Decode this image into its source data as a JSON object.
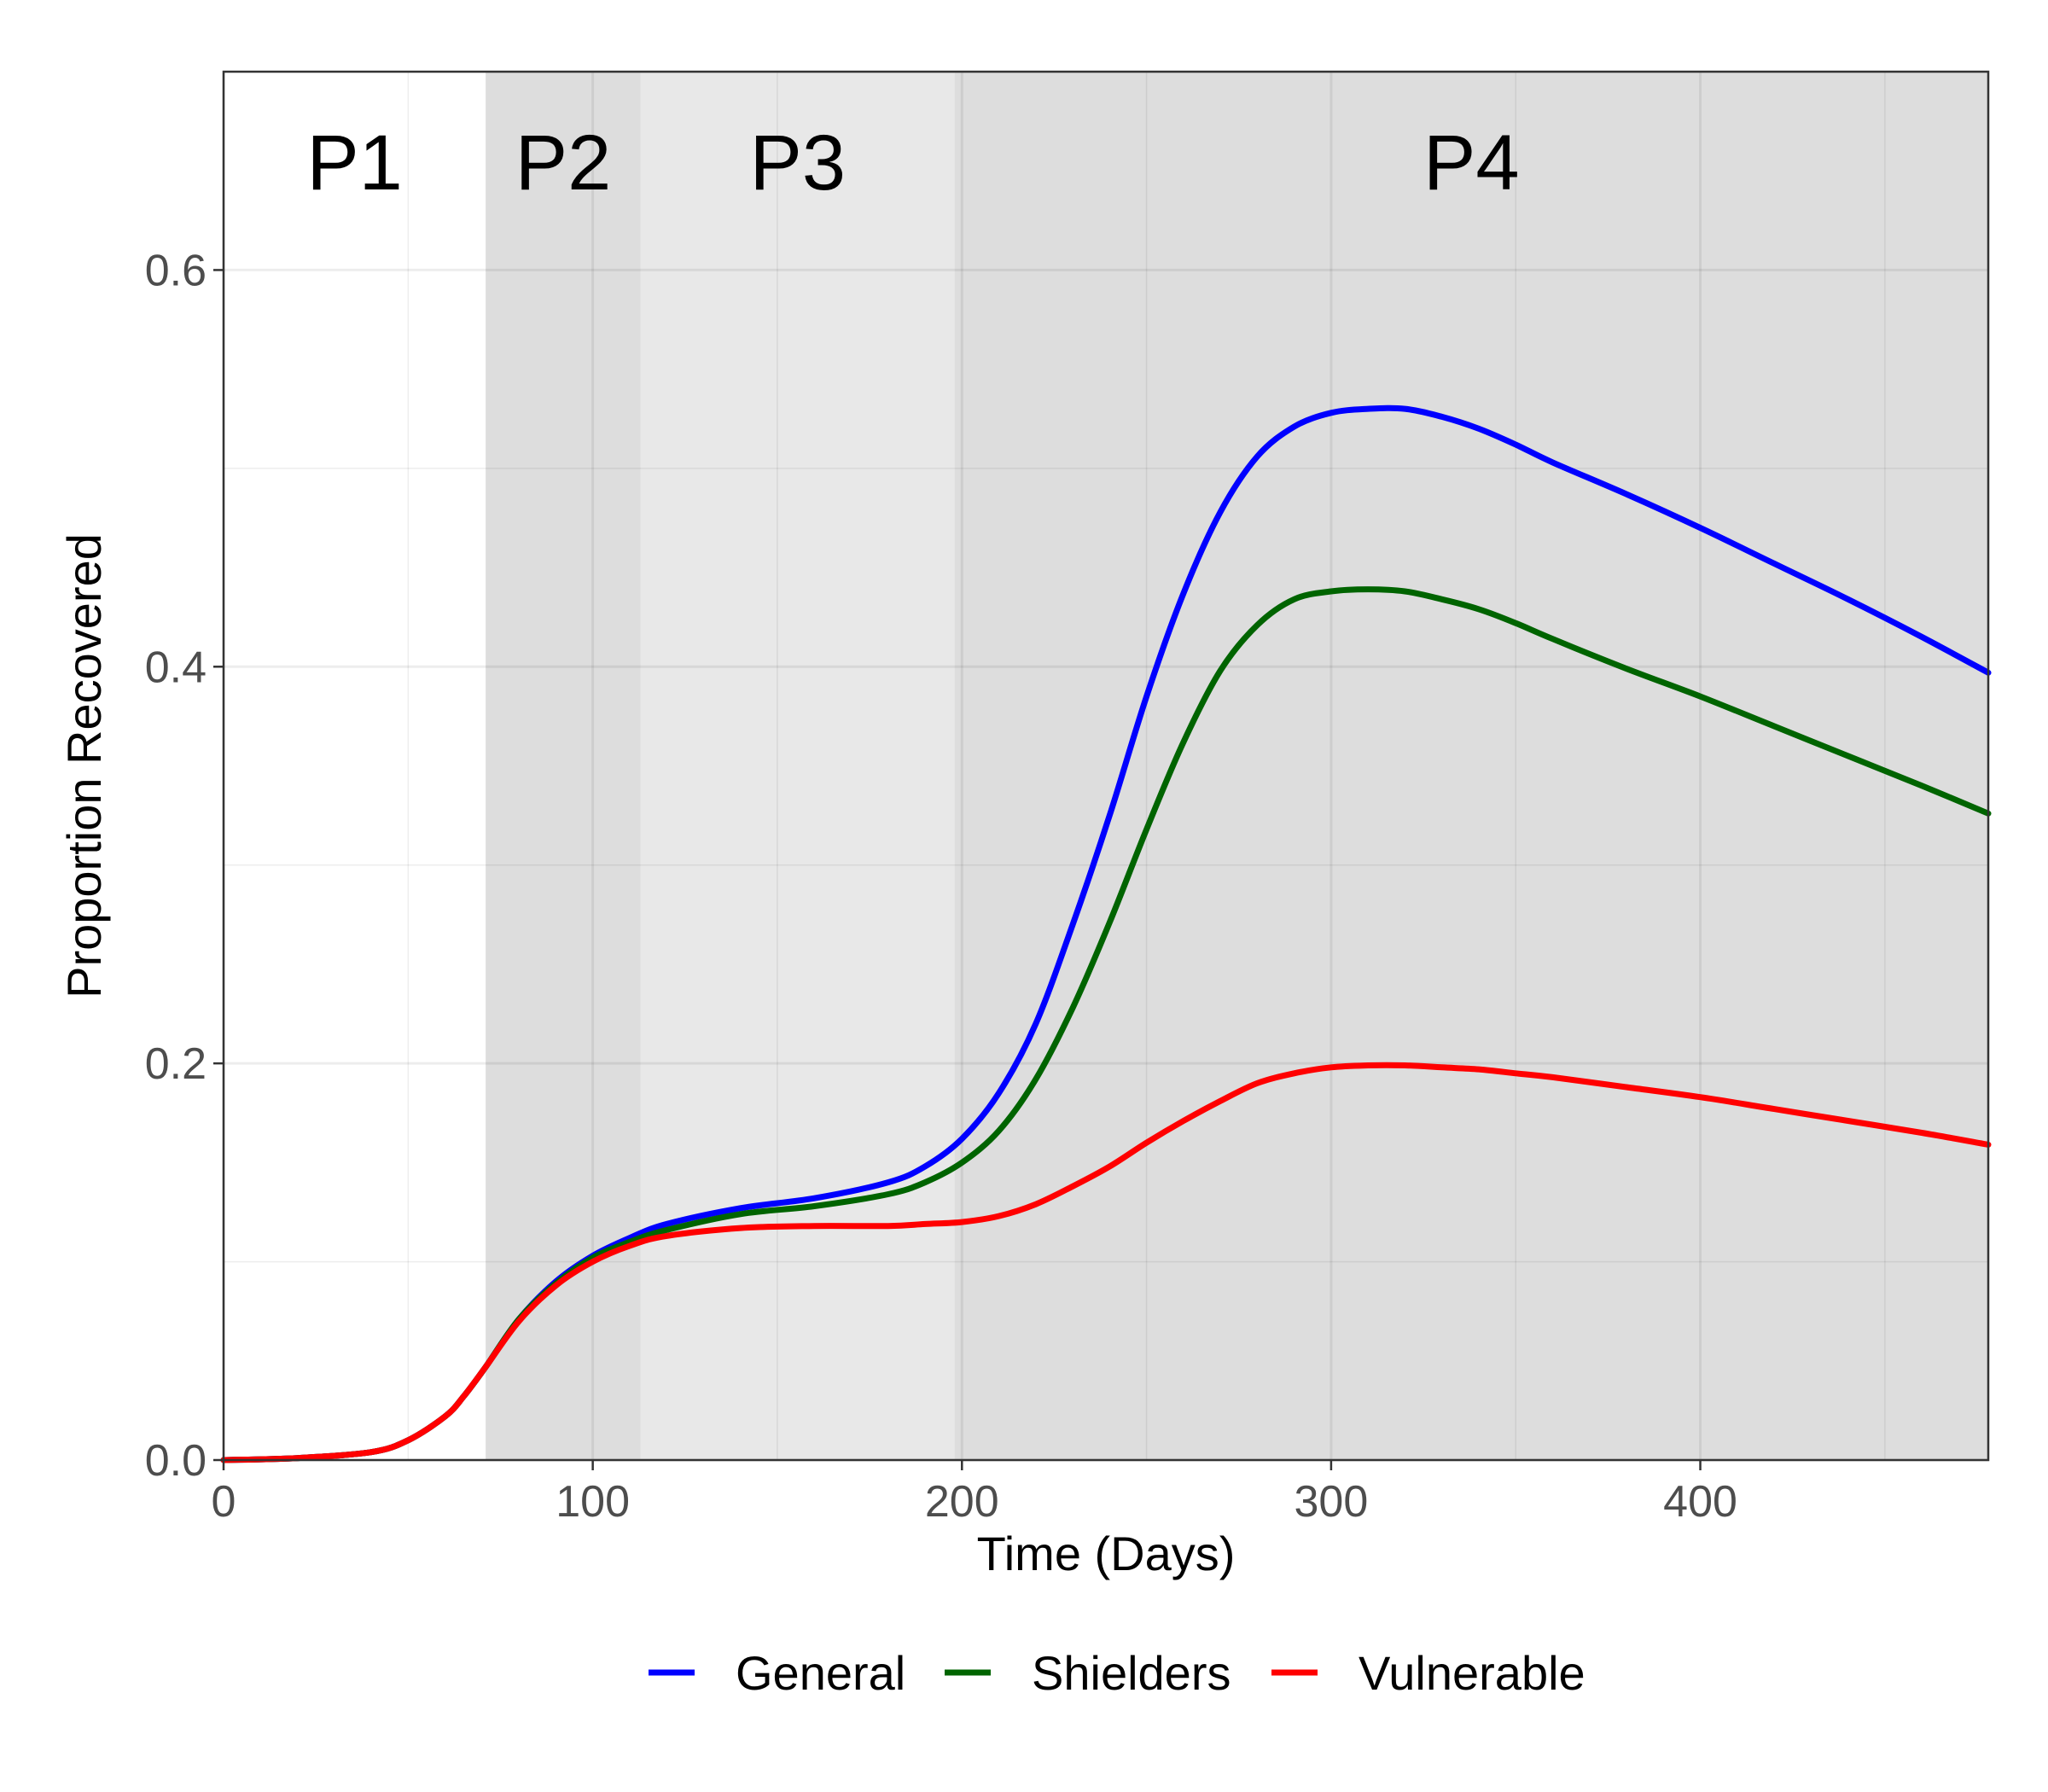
{
  "chart_data": {
    "type": "line",
    "title": "",
    "xlabel": "Time (Days)",
    "ylabel": "Proportion Recovered",
    "xlim": [
      0,
      478
    ],
    "ylim": [
      0,
      0.7
    ],
    "x_ticks": [
      0,
      100,
      200,
      300,
      400
    ],
    "x_tick_labels": [
      "0",
      "100",
      "200",
      "300",
      "400"
    ],
    "y_ticks": [
      0.0,
      0.2,
      0.4,
      0.6
    ],
    "y_tick_labels": [
      "0.0",
      "0.2",
      "0.4",
      "0.6"
    ],
    "grid": true,
    "legend_position": "bottom",
    "phases": [
      {
        "label": "P1",
        "start": 0,
        "end": 71,
        "color": "#ffffff"
      },
      {
        "label": "P2",
        "start": 71,
        "end": 113,
        "color": "#dddddd"
      },
      {
        "label": "P3",
        "start": 113,
        "end": 198,
        "color": "#e8e8e8"
      },
      {
        "label": "P4",
        "start": 198,
        "end": 478,
        "color": "#dddddd"
      }
    ],
    "x": [
      0,
      20,
      40,
      50,
      60,
      65,
      71,
      80,
      90,
      100,
      110,
      120,
      140,
      160,
      180,
      190,
      200,
      210,
      220,
      230,
      240,
      250,
      260,
      270,
      280,
      290,
      300,
      310,
      320,
      330,
      340,
      350,
      360,
      380,
      400,
      420,
      440,
      460,
      478
    ],
    "series": [
      {
        "name": "General",
        "color": "#0000ff",
        "values": [
          0.0,
          0.001,
          0.004,
          0.01,
          0.022,
          0.032,
          0.047,
          0.071,
          0.09,
          0.103,
          0.112,
          0.119,
          0.127,
          0.132,
          0.14,
          0.148,
          0.162,
          0.185,
          0.22,
          0.27,
          0.325,
          0.385,
          0.437,
          0.478,
          0.506,
          0.521,
          0.528,
          0.53,
          0.53,
          0.526,
          0.52,
          0.512,
          0.503,
          0.487,
          0.47,
          0.452,
          0.434,
          0.415,
          0.397
        ]
      },
      {
        "name": "Shielders",
        "color": "#006400",
        "values": [
          0.0,
          0.001,
          0.004,
          0.01,
          0.022,
          0.032,
          0.047,
          0.071,
          0.089,
          0.102,
          0.11,
          0.116,
          0.124,
          0.128,
          0.134,
          0.14,
          0.15,
          0.166,
          0.192,
          0.228,
          0.271,
          0.318,
          0.362,
          0.398,
          0.421,
          0.434,
          0.438,
          0.439,
          0.438,
          0.434,
          0.429,
          0.422,
          0.414,
          0.399,
          0.385,
          0.37,
          0.355,
          0.34,
          0.326
        ]
      },
      {
        "name": "Vulnerable",
        "color": "#ff0000",
        "values": [
          0.0,
          0.001,
          0.004,
          0.01,
          0.022,
          0.032,
          0.047,
          0.07,
          0.088,
          0.1,
          0.108,
          0.113,
          0.117,
          0.118,
          0.118,
          0.119,
          0.12,
          0.123,
          0.129,
          0.138,
          0.148,
          0.16,
          0.171,
          0.181,
          0.19,
          0.195,
          0.198,
          0.199,
          0.199,
          0.198,
          0.197,
          0.195,
          0.193,
          0.188,
          0.183,
          0.177,
          0.171,
          0.165,
          0.159
        ]
      }
    ]
  }
}
